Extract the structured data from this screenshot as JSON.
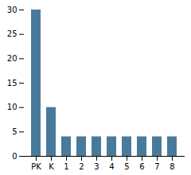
{
  "chart_data": {
    "type": "bar",
    "categories": [
      "PK",
      "K",
      "1",
      "2",
      "3",
      "4",
      "5",
      "6",
      "7",
      "8"
    ],
    "values": [
      30,
      10,
      4,
      4,
      4,
      4,
      4,
      4,
      4,
      4
    ],
    "color": "#4a7a9b",
    "ylim": [
      0,
      30
    ],
    "yticks": [
      0,
      5,
      10,
      15,
      20,
      25,
      30
    ],
    "grid": false
  }
}
